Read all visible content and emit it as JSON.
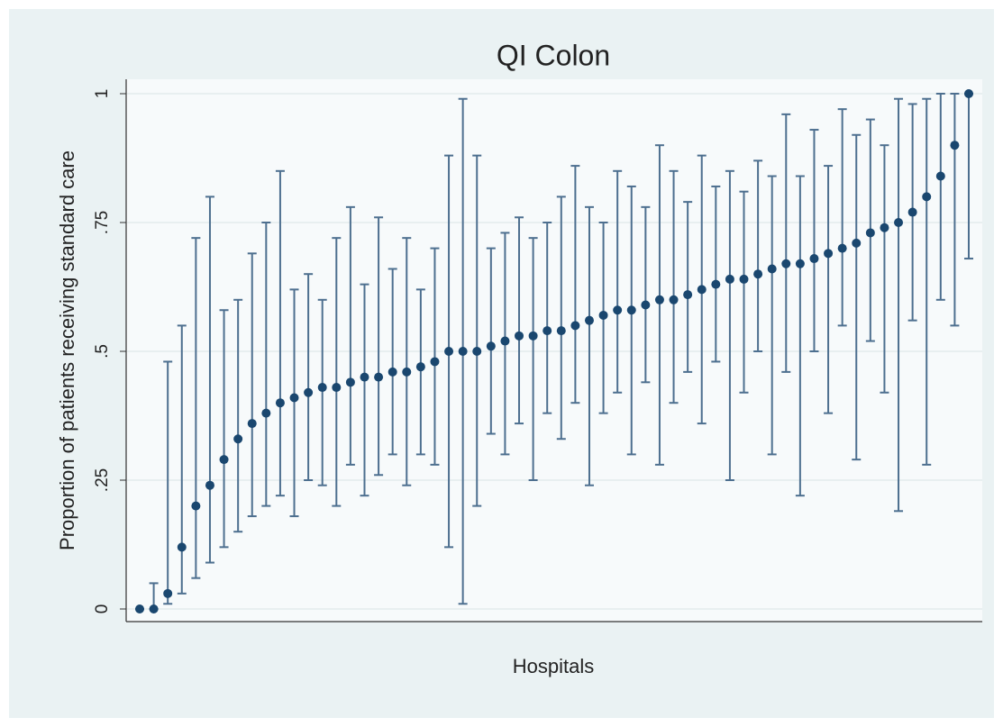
{
  "chart_data": {
    "type": "errorbar",
    "title": "QI Colon",
    "xlabel": "Hospitals",
    "ylabel": "Proportion of patients receiving standard care",
    "color": "#1a476f",
    "grid": true,
    "ylim": [
      0,
      1
    ],
    "yticks": [
      0,
      {
        "value": 0.25,
        "label": ".25"
      },
      {
        "value": 0.5,
        "label": ".5"
      },
      {
        "value": 0.75,
        "label": ".75"
      },
      1
    ],
    "values": [
      0,
      0,
      0.03,
      0.12,
      0.2,
      0.24,
      0.29,
      0.33,
      0.36,
      0.38,
      0.4,
      0.41,
      0.42,
      0.43,
      0.43,
      0.44,
      0.45,
      0.45,
      0.46,
      0.46,
      0.47,
      0.48,
      0.5,
      0.5,
      0.5,
      0.51,
      0.52,
      0.53,
      0.53,
      0.54,
      0.54,
      0.55,
      0.56,
      0.57,
      0.58,
      0.58,
      0.59,
      0.6,
      0.6,
      0.61,
      0.62,
      0.63,
      0.64,
      0.64,
      0.65,
      0.66,
      0.67,
      0.67,
      0.68,
      0.69,
      0.7,
      0.71,
      0.73,
      0.74,
      0.75,
      0.77,
      0.8,
      0.84,
      0.9,
      1
    ],
    "lower": [
      0,
      0,
      0.01,
      0.03,
      0.06,
      0.09,
      0.12,
      0.15,
      0.18,
      0.2,
      0.22,
      0.18,
      0.25,
      0.24,
      0.2,
      0.28,
      0.22,
      0.26,
      0.3,
      0.24,
      0.3,
      0.28,
      0.12,
      0.01,
      0.2,
      0.34,
      0.3,
      0.36,
      0.25,
      0.38,
      0.33,
      0.4,
      0.24,
      0.38,
      0.42,
      0.3,
      0.44,
      0.28,
      0.4,
      0.46,
      0.36,
      0.48,
      0.25,
      0.42,
      0.5,
      0.3,
      0.46,
      0.22,
      0.5,
      0.38,
      0.55,
      0.29,
      0.52,
      0.42,
      0.19,
      0.56,
      0.28,
      0.6,
      0.55,
      0.68
    ],
    "upper": [
      0,
      0.05,
      0.48,
      0.55,
      0.72,
      0.8,
      0.58,
      0.6,
      0.69,
      0.75,
      0.85,
      0.62,
      0.65,
      0.6,
      0.72,
      0.78,
      0.63,
      0.76,
      0.66,
      0.72,
      0.62,
      0.7,
      0.88,
      0.99,
      0.88,
      0.7,
      0.73,
      0.76,
      0.72,
      0.75,
      0.8,
      0.86,
      0.78,
      0.75,
      0.85,
      0.82,
      0.78,
      0.9,
      0.85,
      0.79,
      0.88,
      0.82,
      0.85,
      0.81,
      0.87,
      0.84,
      0.96,
      0.84,
      0.93,
      0.86,
      0.97,
      0.92,
      0.95,
      0.9,
      0.99,
      0.98,
      0.99,
      1,
      1,
      1
    ]
  }
}
